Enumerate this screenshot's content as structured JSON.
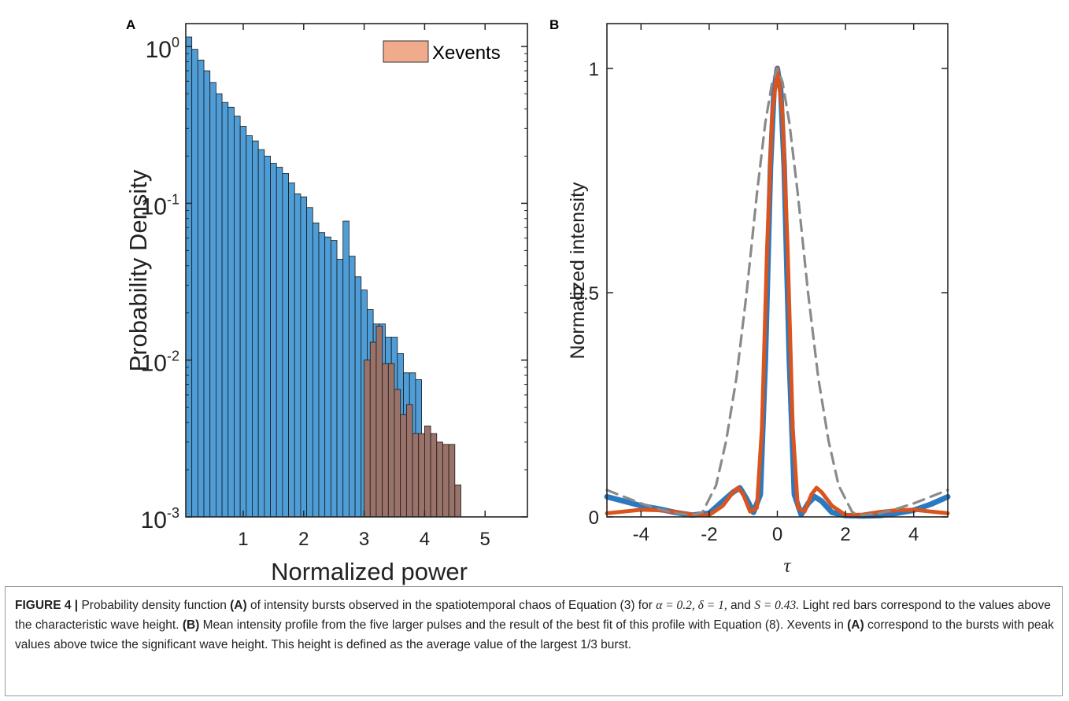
{
  "chart_data": [
    {
      "panel": "A",
      "type": "bar",
      "yscale": "log",
      "xlabel": "Normalized power",
      "ylabel": "Probability Density",
      "xlim": [
        0.05,
        5.7
      ],
      "ylim": [
        0.001,
        1.4
      ],
      "xticks": [
        {
          "v": 1,
          "label": "1"
        },
        {
          "v": 2,
          "label": "2"
        },
        {
          "v": 3,
          "label": "3"
        },
        {
          "v": 4,
          "label": "4"
        },
        {
          "v": 5,
          "label": "5"
        }
      ],
      "yticks": [
        {
          "v": 1,
          "base": "10",
          "exp": "0"
        },
        {
          "v": 0.1,
          "base": "10",
          "exp": "-1"
        },
        {
          "v": 0.01,
          "base": "10",
          "exp": "-2"
        },
        {
          "v": 0.001,
          "base": "10",
          "exp": "-3"
        }
      ],
      "bin_width": 0.1,
      "legend": {
        "position": "top-right",
        "entries": [
          "Xevents"
        ]
      },
      "series": [
        {
          "name": "",
          "color": "#4f9dd6",
          "x0": 0.05,
          "values": [
            1.15,
            0.96,
            0.82,
            0.7,
            0.59,
            0.5,
            0.44,
            0.41,
            0.36,
            0.31,
            0.27,
            0.25,
            0.22,
            0.2,
            0.18,
            0.17,
            0.155,
            0.135,
            0.115,
            0.11,
            0.094,
            0.075,
            0.065,
            0.061,
            0.058,
            0.044,
            0.077,
            0.046,
            0.034,
            0.028,
            0.021,
            0.017,
            0.017,
            0.014,
            0.014,
            0.011,
            0.0083,
            0.0083,
            0.0075
          ]
        },
        {
          "name": "Xevents",
          "color": "#997269",
          "x0": 3.0,
          "values": [
            0.01,
            0.013,
            0.0165,
            0.0095,
            0.0095,
            0.0065,
            0.0045,
            0.0052,
            0.0034,
            0.0034,
            0.0038,
            0.0034,
            0.003,
            0.0029,
            0.0029,
            0.0016
          ]
        }
      ]
    },
    {
      "panel": "B",
      "type": "line",
      "xlabel": "τ",
      "ylabel": "Normalized intensity",
      "xlim": [
        -5,
        5
      ],
      "ylim": [
        0,
        1.1
      ],
      "xticks": [
        {
          "v": -4,
          "label": "-4"
        },
        {
          "v": -2,
          "label": "-2"
        },
        {
          "v": 0,
          "label": "0"
        },
        {
          "v": 2,
          "label": "2"
        },
        {
          "v": 4,
          "label": "4"
        }
      ],
      "yticks": [
        {
          "v": 0,
          "label": "0"
        },
        {
          "v": 0.5,
          "label": "0.5"
        },
        {
          "v": 1,
          "label": "1"
        }
      ],
      "series": [
        {
          "name": "",
          "color": "#2b79c0",
          "style": "solid",
          "x": [
            -5,
            -4.5,
            -4,
            -3.5,
            -3,
            -2.5,
            -2,
            -1.6,
            -1.3,
            -1.1,
            -0.9,
            -0.7,
            -0.5,
            -0.35,
            -0.2,
            -0.1,
            0,
            0.1,
            0.2,
            0.35,
            0.5,
            0.7,
            0.9,
            1.1,
            1.3,
            1.6,
            2,
            2.5,
            3,
            3.5,
            4,
            4.5,
            5
          ],
          "y": [
            0.045,
            0.035,
            0.025,
            0.018,
            0.01,
            0.004,
            0.008,
            0.035,
            0.055,
            0.065,
            0.04,
            0.01,
            0.05,
            0.35,
            0.78,
            0.95,
            1.0,
            0.95,
            0.78,
            0.35,
            0.05,
            0.005,
            0.03,
            0.045,
            0.035,
            0.01,
            0.003,
            0.002,
            0.003,
            0.008,
            0.015,
            0.028,
            0.045
          ]
        },
        {
          "name": "",
          "color": "#d9541e",
          "style": "solid",
          "x": [
            -5,
            -4.5,
            -4,
            -3.5,
            -3,
            -2.5,
            -2,
            -1.6,
            -1.3,
            -1.15,
            -1.0,
            -0.8,
            -0.6,
            -0.45,
            -0.3,
            -0.15,
            0,
            0.15,
            0.3,
            0.45,
            0.6,
            0.8,
            1.0,
            1.15,
            1.3,
            1.6,
            2,
            2.5,
            3,
            3.5,
            4,
            4.5,
            5
          ],
          "y": [
            0.008,
            0.012,
            0.016,
            0.015,
            0.011,
            0.005,
            0.004,
            0.025,
            0.055,
            0.065,
            0.05,
            0.012,
            0.02,
            0.2,
            0.6,
            0.9,
            1.0,
            0.9,
            0.6,
            0.2,
            0.02,
            0.012,
            0.05,
            0.065,
            0.055,
            0.025,
            0.004,
            0.005,
            0.011,
            0.015,
            0.016,
            0.012,
            0.008
          ]
        },
        {
          "name": "",
          "color": "#8a8a8a",
          "style": "dashed",
          "x": [
            -5,
            -4.5,
            -4,
            -3.5,
            -3,
            -2.5,
            -2.2,
            -1.8,
            -1.5,
            -1.2,
            -0.9,
            -0.6,
            -0.35,
            -0.15,
            0,
            0.15,
            0.35,
            0.6,
            0.9,
            1.2,
            1.5,
            1.8,
            2.2,
            2.5,
            3,
            3.5,
            4,
            4.5,
            5
          ],
          "y": [
            0.06,
            0.045,
            0.03,
            0.018,
            0.008,
            0.004,
            0.01,
            0.07,
            0.17,
            0.31,
            0.5,
            0.72,
            0.88,
            0.97,
            1.0,
            0.97,
            0.88,
            0.72,
            0.5,
            0.31,
            0.17,
            0.07,
            0.01,
            0.004,
            0.008,
            0.018,
            0.03,
            0.045,
            0.06
          ]
        }
      ]
    }
  ],
  "panels": {
    "a_letter": "A",
    "b_letter": "B"
  },
  "caption": {
    "figure_label": "FIGURE 4 |",
    "seg1": " Probability density function ",
    "ref_a1": "(A)",
    "seg2": " of intensity bursts observed in the spatiotemporal chaos of Equation (3) for ",
    "m1": "α = 0.2, δ = 1,",
    "seg3": " and ",
    "m2": "S = 0.43.",
    "seg4": " Light red bars correspond to the values above the characteristic wave height. ",
    "ref_b": "(B)",
    "seg5": " Mean intensity profile from the five larger pulses and the result of the best fit of this profile with Equation (8). Xevents in ",
    "ref_a2": "(A)",
    "seg6": " correspond to the bursts with peak values above twice the significant wave height. This height is defined as the average value of the largest 1/3 burst."
  }
}
